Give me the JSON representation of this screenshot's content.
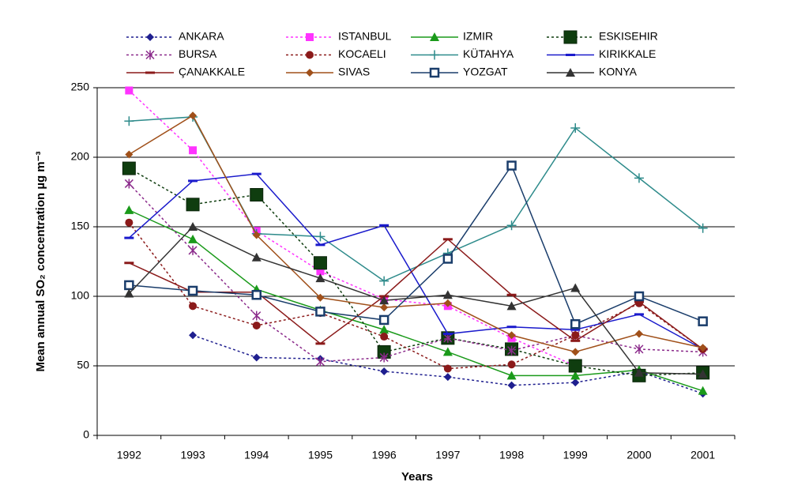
{
  "chart_data": {
    "type": "line",
    "y_label": "Mean annual SO₂ concentration µg m⁻³",
    "x_label": "Years",
    "categories": [
      "1992",
      "1993",
      "1994",
      "1995",
      "1996",
      "1997",
      "1998",
      "1999",
      "2000",
      "2001"
    ],
    "ylim": [
      0,
      250
    ],
    "yticks": [
      0,
      50,
      100,
      150,
      200,
      250
    ],
    "grid": true,
    "series": [
      {
        "name": "ANKARA",
        "color": "#1f1f8f",
        "marker": "diamond",
        "dash": true,
        "values": [
          null,
          72,
          56,
          55,
          46,
          42,
          36,
          38,
          46,
          30
        ]
      },
      {
        "name": "ISTANBUL",
        "color": "#ff33ff",
        "marker": "square",
        "dash": true,
        "values": [
          248,
          205,
          147,
          118,
          98,
          93,
          70,
          50,
          null,
          null
        ]
      },
      {
        "name": "IZMIR",
        "color": "#1a9a1a",
        "marker": "triangle",
        "dash": false,
        "values": [
          162,
          141,
          105,
          90,
          76,
          60,
          43,
          43,
          47,
          32
        ]
      },
      {
        "name": "ESKISEHIR",
        "color": "#0f3d0f",
        "marker": "bigsquare",
        "dash": true,
        "values": [
          192,
          166,
          173,
          124,
          60,
          70,
          62,
          50,
          43,
          45
        ]
      },
      {
        "name": "BURSA",
        "color": "#8b2a8b",
        "marker": "star",
        "dash": true,
        "values": [
          181,
          133,
          86,
          53,
          56,
          70,
          61,
          72,
          62,
          60
        ]
      },
      {
        "name": "KOCAELI",
        "color": "#8b1a1a",
        "marker": "circle",
        "dash": true,
        "values": [
          153,
          93,
          79,
          88,
          71,
          48,
          51,
          72,
          95,
          62
        ]
      },
      {
        "name": "KÜTAHYA",
        "color": "#2e8b8b",
        "marker": "plus",
        "dash": false,
        "values": [
          226,
          229,
          145,
          143,
          111,
          131,
          151,
          221,
          185,
          149
        ]
      },
      {
        "name": "KIRIKKALE",
        "color": "#1a1acc",
        "marker": "dash",
        "dash": false,
        "values": [
          142,
          183,
          188,
          137,
          151,
          73,
          78,
          76,
          87,
          62
        ]
      },
      {
        "name": "ÇANAKKALE",
        "color": "#8b1a1a",
        "marker": "dash",
        "dash": false,
        "values": [
          124,
          103,
          103,
          66,
          100,
          141,
          101,
          68,
          96,
          62
        ]
      },
      {
        "name": "SIVAS",
        "color": "#a0501a",
        "marker": "diamond",
        "dash": false,
        "values": [
          202,
          230,
          144,
          99,
          92,
          95,
          72,
          60,
          73,
          63
        ]
      },
      {
        "name": "YOZGAT",
        "color": "#1a3d6b",
        "marker": "opensquare",
        "dash": false,
        "values": [
          108,
          104,
          101,
          89,
          83,
          127,
          194,
          80,
          100,
          82
        ]
      },
      {
        "name": "KONYA",
        "color": "#333333",
        "marker": "triangle",
        "dash": false,
        "values": [
          102,
          150,
          128,
          113,
          97,
          101,
          93,
          106,
          45,
          44
        ]
      }
    ]
  }
}
